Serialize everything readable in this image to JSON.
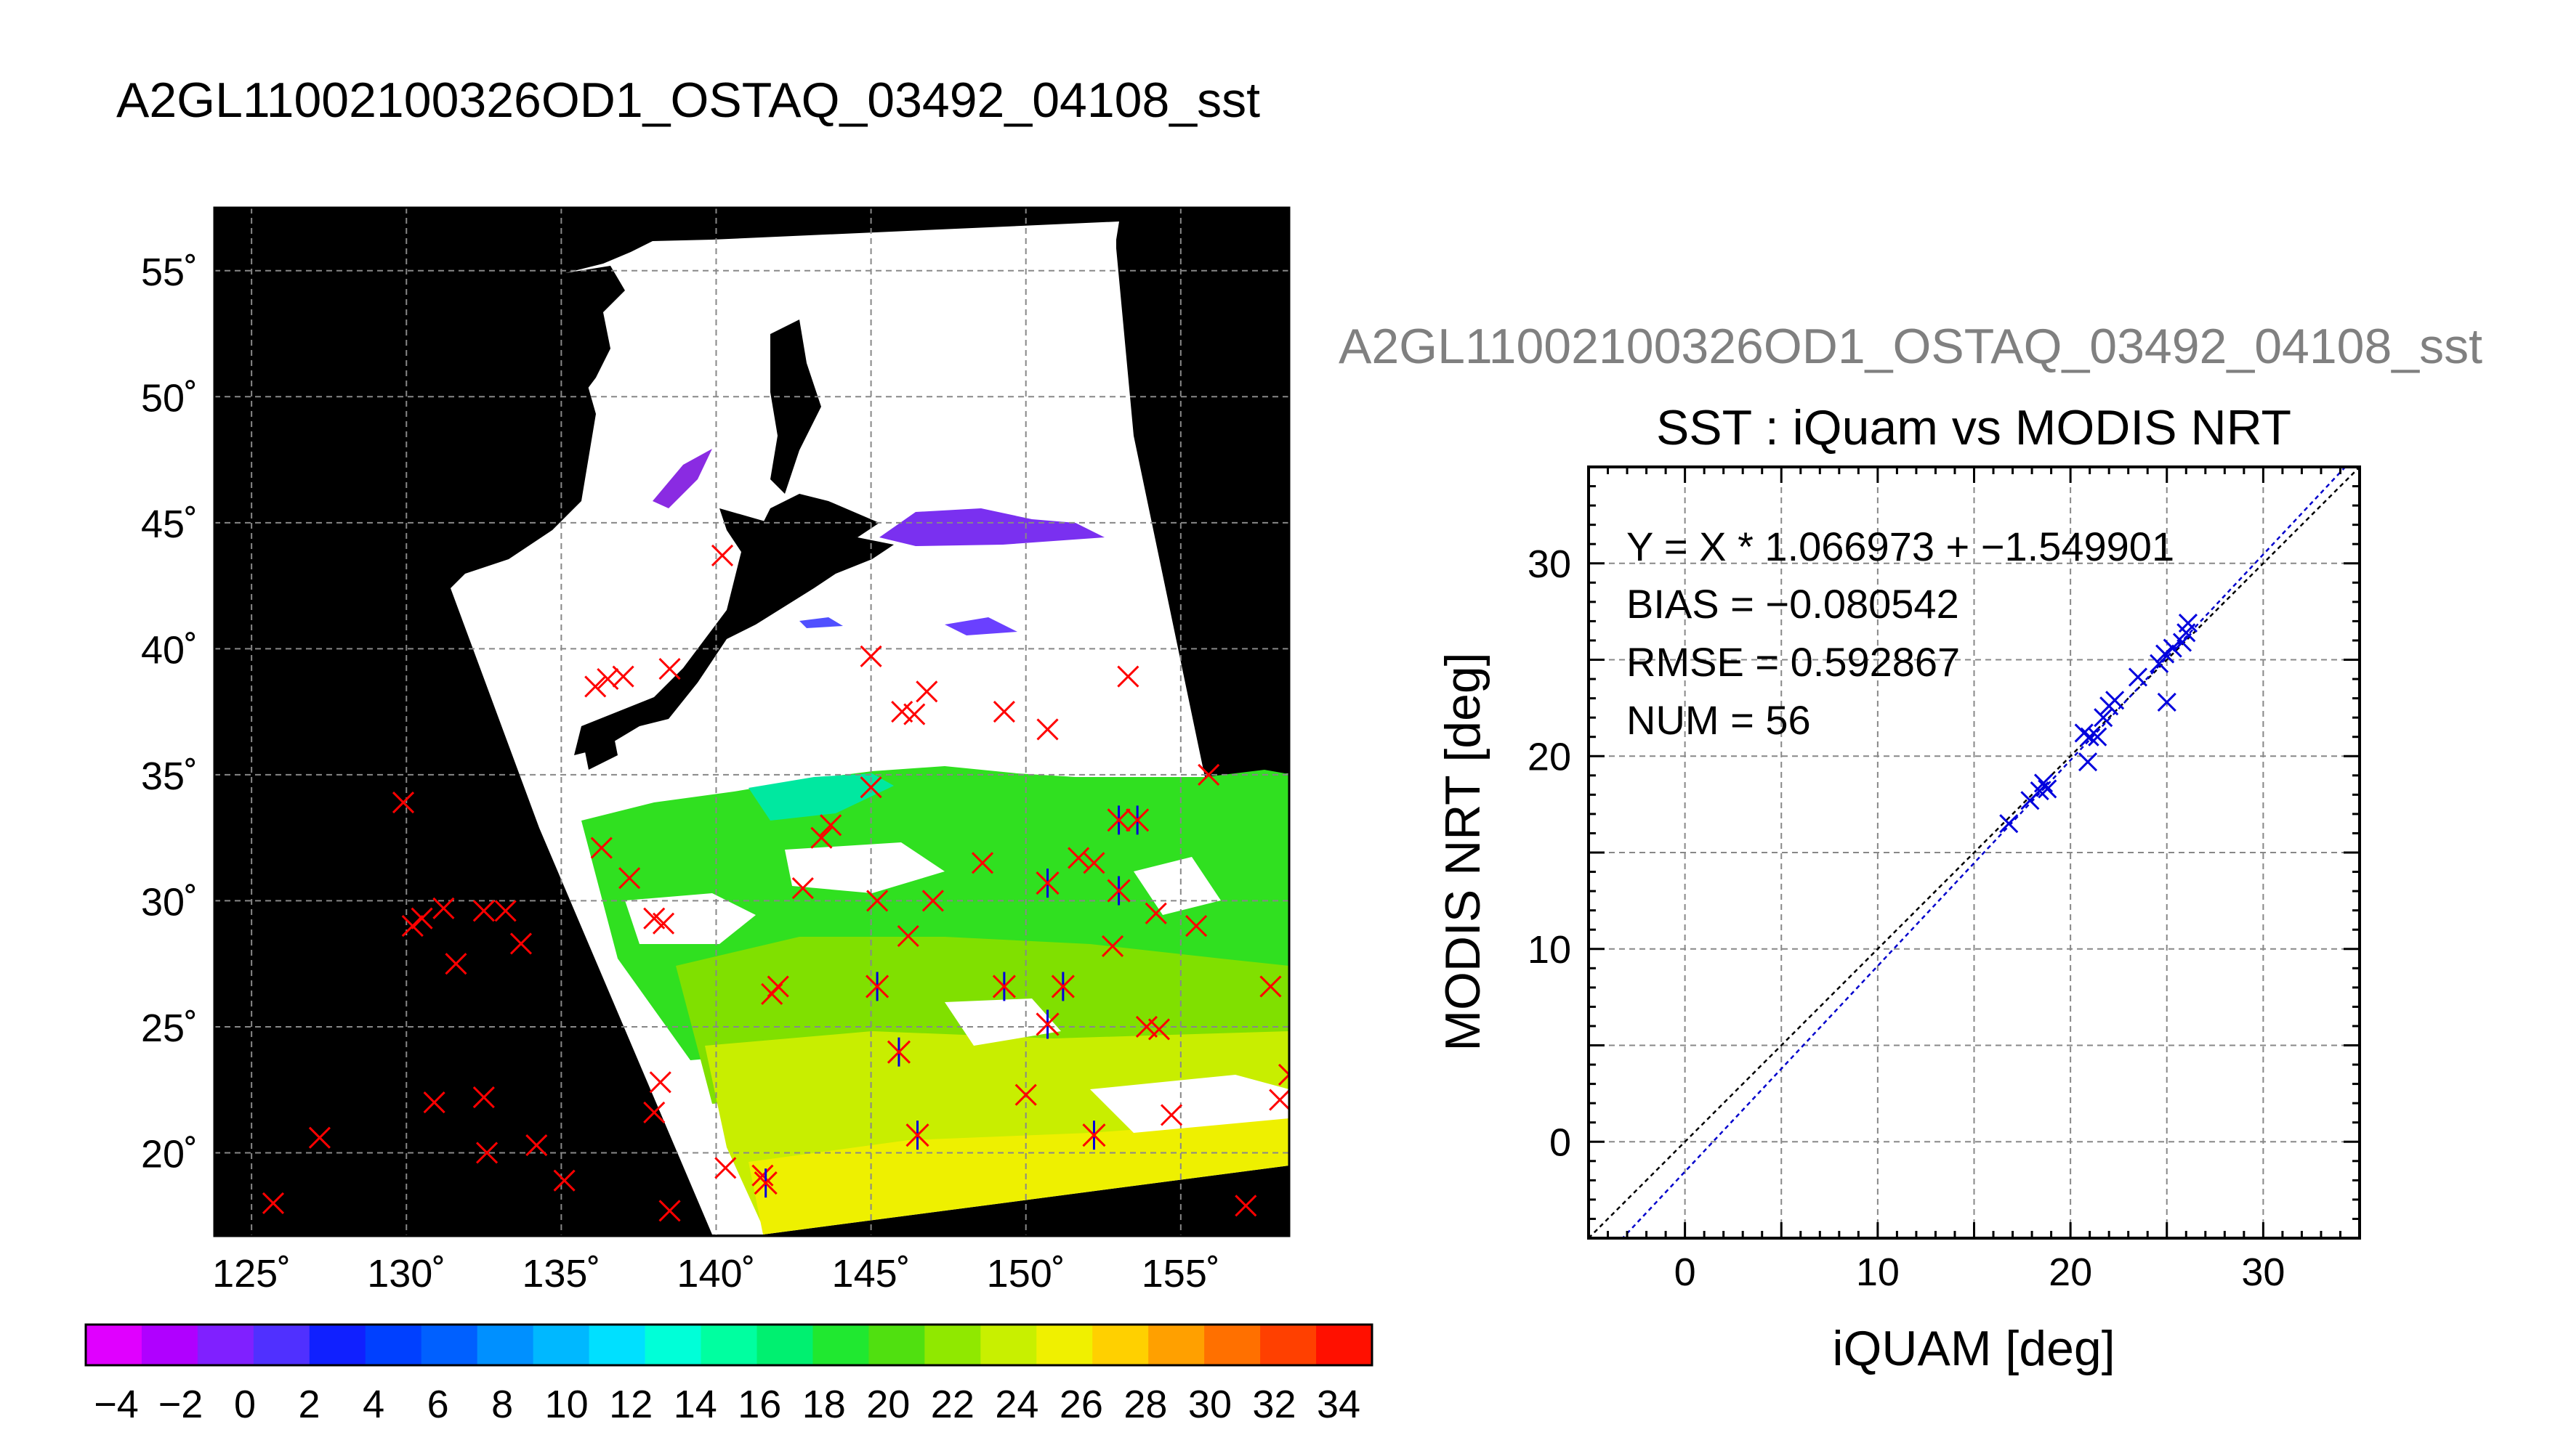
{
  "main_title": "A2GL11002100326OD1_OSTAQ_03492_04108_sst",
  "map": {
    "lat_ticks": [
      "55˚",
      "50˚",
      "45˚",
      "40˚",
      "35˚",
      "30˚",
      "25˚",
      "20˚"
    ],
    "lon_ticks": [
      "125˚",
      "130˚",
      "135˚",
      "140˚",
      "145˚",
      "150˚",
      "155˚"
    ],
    "colorbar_labels": [
      "−4",
      "−2",
      "0",
      "2",
      "4",
      "6",
      "8",
      "10",
      "12",
      "14",
      "16",
      "18",
      "20",
      "22",
      "24",
      "26",
      "28",
      "30",
      "32",
      "34"
    ],
    "colorbar_colors": [
      "#e000ff",
      "#b000ff",
      "#8020ff",
      "#5030ff",
      "#1020ff",
      "#0040ff",
      "#0060ff",
      "#0090ff",
      "#00b8ff",
      "#00e0ff",
      "#00ffd8",
      "#00ffa0",
      "#00f070",
      "#20e830",
      "#50e010",
      "#90e800",
      "#c8f000",
      "#f0f000",
      "#ffd000",
      "#ffa000",
      "#ff7000",
      "#ff4000",
      "#ff1000"
    ]
  },
  "scatter": {
    "subtitle": "A2GL11002100326OD1_OSTAQ_03492_04108_sst",
    "title": "SST : iQuam vs MODIS NRT",
    "xlabel": "iQUAM [deg]",
    "ylabel": "MODIS NRT [deg]",
    "stats": [
      "Y = X * 1.066973 + −1.549901",
      "BIAS = −0.080542",
      "RMSE = 0.592867",
      "NUM = 56"
    ],
    "x_ticks": [
      "0",
      "10",
      "20",
      "30"
    ],
    "y_ticks": [
      "0",
      "10",
      "20",
      "30"
    ]
  },
  "colors": {
    "match_marker": "#0000dd",
    "map_marker": "#ff0000",
    "fit_line": "#0000cc",
    "one_to_one": "#000000"
  },
  "chart_data": [
    {
      "type": "scatter",
      "title": "SST : iQuam vs MODIS NRT",
      "xlabel": "iQUAM [deg]",
      "ylabel": "MODIS NRT [deg]",
      "xlim": [
        -5,
        35
      ],
      "ylim": [
        -5,
        35
      ],
      "grid": true,
      "fit": {
        "slope": 1.066973,
        "intercept": -1.549901
      },
      "one_to_one": true,
      "points": [
        [
          16.8,
          16.5
        ],
        [
          17.9,
          17.7
        ],
        [
          18.4,
          18.2
        ],
        [
          18.6,
          18.6
        ],
        [
          18.8,
          18.3
        ],
        [
          20.7,
          21.2
        ],
        [
          21.0,
          21.0
        ],
        [
          20.9,
          19.7
        ],
        [
          21.4,
          21.0
        ],
        [
          21.7,
          22.0
        ],
        [
          22.0,
          22.6
        ],
        [
          22.3,
          22.9
        ],
        [
          23.5,
          24.1
        ],
        [
          24.6,
          24.8
        ],
        [
          24.9,
          25.3
        ],
        [
          25.0,
          22.8
        ],
        [
          25.3,
          25.6
        ],
        [
          25.8,
          25.9
        ],
        [
          26.0,
          26.4
        ],
        [
          26.1,
          26.9
        ]
      ]
    },
    {
      "type": "scatter",
      "title": "A2GL11002100326OD1_OSTAQ_03492_04108_sst",
      "xlabel": "",
      "ylabel": "",
      "xlim": [
        123.8,
        158.5
      ],
      "ylim": [
        16.7,
        57.5
      ],
      "grid": true,
      "series": [
        {
          "name": "",
          "points": [
            [
              140.2,
              43.7
            ],
            [
              136.1,
              38.5
            ],
            [
              136.5,
              38.8
            ],
            [
              137.0,
              38.9
            ],
            [
              138.5,
              39.2
            ],
            [
              145.0,
              39.7
            ],
            [
              146.0,
              37.5
            ],
            [
              146.4,
              37.4
            ],
            [
              146.8,
              38.3
            ],
            [
              149.3,
              37.5
            ],
            [
              150.7,
              36.8
            ],
            [
              153.3,
              38.9
            ],
            [
              145.0,
              34.5
            ],
            [
              155.9,
              35.0
            ],
            [
              129.9,
              33.9
            ],
            [
              136.3,
              32.1
            ],
            [
              137.2,
              30.9
            ],
            [
              138.0,
              29.3
            ],
            [
              138.3,
              29.1
            ],
            [
              143.4,
              32.5
            ],
            [
              143.7,
              33.0
            ],
            [
              142.8,
              30.5
            ],
            [
              145.2,
              30.0
            ],
            [
              147.0,
              30.0
            ],
            [
              148.6,
              31.5
            ],
            [
              151.7,
              31.7
            ],
            [
              152.2,
              31.5
            ],
            [
              154.2,
              29.5
            ],
            [
              155.5,
              29.0
            ],
            [
              130.2,
              29.0
            ],
            [
              130.5,
              29.3
            ],
            [
              131.2,
              29.7
            ],
            [
              132.5,
              29.6
            ],
            [
              133.2,
              29.6
            ],
            [
              133.7,
              28.3
            ],
            [
              131.6,
              27.5
            ],
            [
              141.8,
              26.3
            ],
            [
              142.0,
              26.6
            ],
            [
              146.2,
              28.6
            ],
            [
              152.8,
              28.2
            ],
            [
              157.9,
              26.6
            ],
            [
              153.9,
              25.0
            ],
            [
              154.3,
              24.9
            ],
            [
              158.5,
              23.1
            ],
            [
              158.2,
              22.1
            ],
            [
              138.2,
              22.8
            ],
            [
              138.0,
              21.6
            ],
            [
              130.9,
              22.0
            ],
            [
              132.5,
              22.2
            ],
            [
              132.6,
              20.0
            ],
            [
              134.2,
              20.3
            ],
            [
              127.2,
              20.6
            ],
            [
              125.7,
              18.0
            ],
            [
              135.1,
              18.9
            ],
            [
              138.5,
              17.7
            ],
            [
              140.3,
              19.4
            ],
            [
              141.5,
              19.1
            ],
            [
              150.0,
              22.3
            ],
            [
              154.7,
              21.5
            ],
            [
              157.1,
              17.9
            ]
          ]
        },
        {
          "name": "",
          "points": [
            [
              141.6,
              18.8
            ],
            [
              146.5,
              20.7
            ],
            [
              152.2,
              20.7
            ],
            [
              145.9,
              24.0
            ],
            [
              150.7,
              25.1
            ],
            [
              145.2,
              26.6
            ],
            [
              149.3,
              26.6
            ],
            [
              151.2,
              26.6
            ],
            [
              150.7,
              30.7
            ],
            [
              153.0,
              30.4
            ],
            [
              153.0,
              33.2
            ],
            [
              153.6,
              33.2
            ]
          ]
        }
      ]
    }
  ]
}
